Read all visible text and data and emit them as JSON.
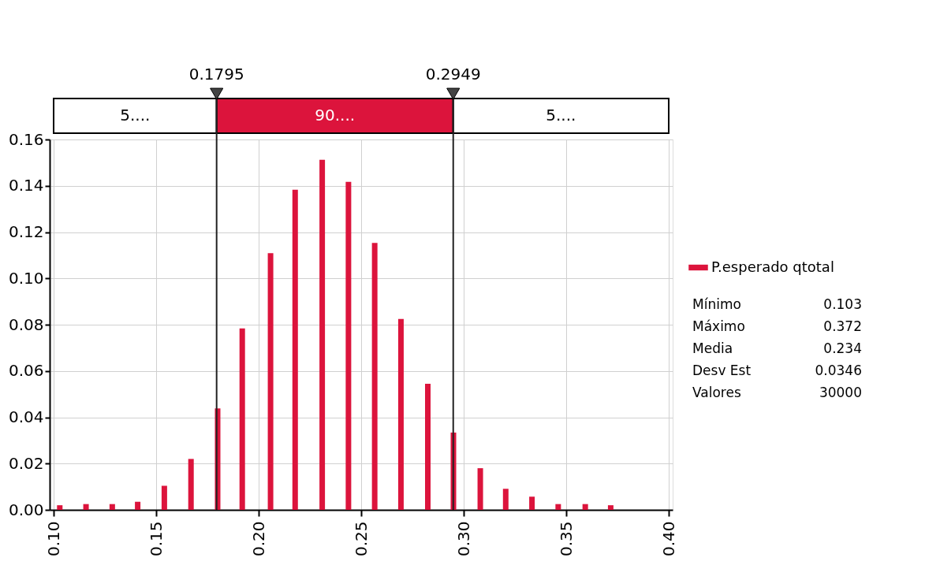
{
  "chart_data": {
    "type": "bar",
    "x": [
      0.103,
      0.1158,
      0.1286,
      0.141,
      0.154,
      0.167,
      0.18,
      0.192,
      0.2058,
      0.2178,
      0.231,
      0.2438,
      0.2566,
      0.2694,
      0.2825,
      0.295,
      0.3081,
      0.3205,
      0.3333,
      0.3461,
      0.3593,
      0.3717
    ],
    "series": [
      {
        "name": "P.esperado qtotal",
        "color": "#dc143c",
        "values": [
          0.002,
          0.0025,
          0.0025,
          0.0035,
          0.0104,
          0.022,
          0.0438,
          0.0784,
          0.1109,
          0.1383,
          0.1512,
          0.1417,
          0.1153,
          0.0825,
          0.0545,
          0.0334,
          0.018,
          0.0091,
          0.0057,
          0.0025,
          0.0025,
          0.002
        ]
      }
    ],
    "xlim": [
      0.1,
      0.4
    ],
    "xticks": [
      {
        "value": 0.1,
        "label": "0.10"
      },
      {
        "value": 0.15,
        "label": "0.15"
      },
      {
        "value": 0.2,
        "label": "0.20"
      },
      {
        "value": 0.25,
        "label": "0.25"
      },
      {
        "value": 0.3,
        "label": "0.30"
      },
      {
        "value": 0.35,
        "label": "0.35"
      },
      {
        "value": 0.4,
        "label": "0.40"
      }
    ],
    "ylim": [
      0,
      0.16
    ],
    "yticks": [
      {
        "value": 0,
        "label": "0.00"
      },
      {
        "value": 0.02,
        "label": "0.02"
      },
      {
        "value": 0.04,
        "label": "0.04"
      },
      {
        "value": 0.06,
        "label": "0.06"
      },
      {
        "value": 0.08,
        "label": "0.08"
      },
      {
        "value": 0.1,
        "label": "0.10"
      },
      {
        "value": 0.12,
        "label": "0.12"
      },
      {
        "value": 0.14,
        "label": "0.14"
      },
      {
        "value": 0.16,
        "label": "0.16"
      }
    ],
    "ref_lines": [
      {
        "axis": "x",
        "value": 0.1795,
        "label": "0.1795"
      },
      {
        "axis": "x",
        "value": 0.2949,
        "label": "0.2949"
      }
    ],
    "annotations": [
      "5....",
      "90....",
      "5....",
      "Mínimo 0.103",
      "Máximo 0.372",
      "Media 0.234",
      "Desv Est 0.0346",
      "Valores 30000"
    ],
    "grid": true,
    "legend": "right"
  }
}
